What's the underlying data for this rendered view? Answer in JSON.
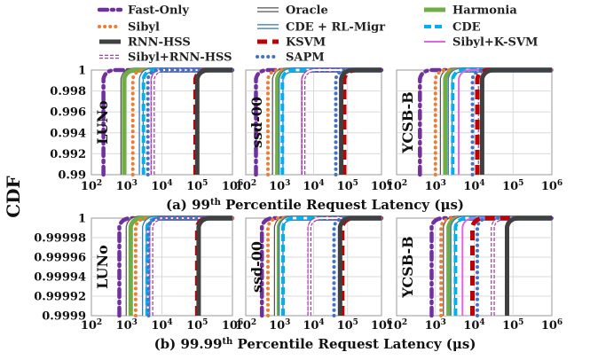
{
  "chart_data": {
    "type": "line",
    "ylabel": "CDF",
    "xscale": "log",
    "xlim": [
      100,
      1000000
    ],
    "x_ticks": [
      "2",
      "3",
      "4",
      "5",
      "6"
    ],
    "legend": {
      "placement": "top",
      "entries": [
        {
          "name": "Fast-Only",
          "color": "#7030a0",
          "style": "dash-dot-thick"
        },
        {
          "name": "Oracle",
          "color": "#7f7f7f",
          "style": "hollow"
        },
        {
          "name": "Harmonia",
          "color": "#70ad47",
          "style": "solid-thick"
        },
        {
          "name": "Sibyl",
          "color": "#ed7d31",
          "style": "dotted"
        },
        {
          "name": "CDE + RL-Migr",
          "color": "#2e75b6",
          "style": "hollow-double"
        },
        {
          "name": "CDE",
          "color": "#00b0f0",
          "style": "dashed"
        },
        {
          "name": "RNN-HSS",
          "color": "#404040",
          "style": "solid-thick"
        },
        {
          "name": "KSVM",
          "color": "#c00000",
          "style": "dashed-thick"
        },
        {
          "name": "Sibyl+K-SVM",
          "color": "#e066e0",
          "style": "solid"
        },
        {
          "name": "Sibyl+RNN-HSS",
          "color": "#a040a0",
          "style": "double-dashed"
        },
        {
          "name": "SAPM",
          "color": "#4472c4",
          "style": "dotted"
        }
      ]
    },
    "rows": [
      {
        "caption_prefix": "(a) 99",
        "caption_sup": "th",
        "caption_suffix": " Percentile Request Latency (μs)",
        "ylim": [
          0.99,
          1.0
        ],
        "y_ticks": [
          "1",
          "0.998",
          "0.996",
          "0.994",
          "0.992",
          "0.99"
        ],
        "panels": [
          {
            "name": "LUNo",
            "latency_us": {
              "Fast-Only": 220,
              "Oracle": 780,
              "Harmonia": 850,
              "Sibyl": 1500,
              "CDE + RL-Migr": 2600,
              "CDE": 3000,
              "RNN-HSS": 100000,
              "KSVM": 90000,
              "Sibyl+K-SVM": 5000,
              "Sibyl+RNN-HSS": 5500,
              "SAPM": 4000
            }
          },
          {
            "name": "ssd-00",
            "latency_us": {
              "Fast-Only": 200,
              "Oracle": 700,
              "Harmonia": 850,
              "Sibyl": 450,
              "CDE + RL-Migr": 1100,
              "CDE": 1200,
              "RNN-HSS": 65000,
              "KSVM": 80000,
              "Sibyl+K-SVM": 4500,
              "Sibyl+RNN-HSS": 5000,
              "SAPM": 45000
            }
          },
          {
            "name": "YCSB-B",
            "latency_us": {
              "Fast-Only": 400,
              "Oracle": 1500,
              "Harmonia": 1800,
              "Sibyl": 1000,
              "CDE + RL-Migr": 2400,
              "CDE": 2800,
              "RNN-HSS": 16000,
              "KSVM": 12000,
              "Sibyl+K-SVM": 4000,
              "Sibyl+RNN-HSS": 14000,
              "SAPM": 9000
            }
          }
        ]
      },
      {
        "caption_prefix": "(b) 99.99",
        "caption_sup": "th",
        "caption_suffix": " Percentile Request Latency (μs)",
        "ylim": [
          0.9999,
          1.0
        ],
        "y_ticks": [
          "1",
          "0.99998",
          "0.99996",
          "0.99994",
          "0.99992",
          "0.9999"
        ],
        "panels": [
          {
            "name": "LUNo",
            "latency_us": {
              "Fast-Only": 620,
              "Oracle": 1100,
              "Harmonia": 1300,
              "Sibyl": 1800,
              "CDE + RL-Migr": 3200,
              "CDE": 3800,
              "RNN-HSS": 110000,
              "KSVM": 100000,
              "Sibyl+K-SVM": 4500,
              "Sibyl+RNN-HSS": 5000,
              "SAPM": 4200
            }
          },
          {
            "name": "ssd-00",
            "latency_us": {
              "Fast-Only": 300,
              "Oracle": 800,
              "Harmonia": 950,
              "Sibyl": 450,
              "CDE + RL-Migr": 1100,
              "CDE": 1250,
              "RNN-HSS": 60000,
              "KSVM": 70000,
              "Sibyl+K-SVM": 7000,
              "Sibyl+RNN-HSS": 7500,
              "SAPM": 40000
            }
          },
          {
            "name": "YCSB-B",
            "latency_us": {
              "Fast-Only": 800,
              "Oracle": 1800,
              "Harmonia": 2200,
              "Sibyl": 1400,
              "CDE + RL-Migr": 2800,
              "CDE": 3300,
              "RNN-HSS": 70000,
              "KSVM": 9000,
              "Sibyl+K-SVM": 5000,
              "Sibyl+RNN-HSS": 30000,
              "SAPM": 12000
            }
          }
        ]
      }
    ]
  }
}
